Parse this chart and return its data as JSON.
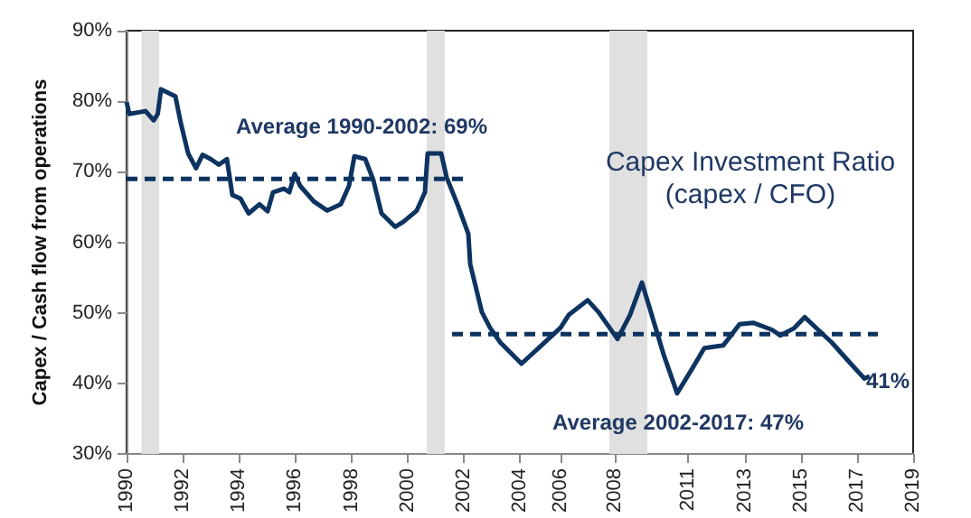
{
  "chart_data": {
    "type": "line",
    "title": "Capex Investment Ratio\n(capex / CFO)",
    "ylabel": "Capex / Cash flow from operations",
    "xlim": [
      1990,
      2019
    ],
    "xticks": [
      {
        "value": 1990,
        "label": "1990"
      },
      {
        "value": 1992.07,
        "label": "1992"
      },
      {
        "value": 1994.14,
        "label": "1994"
      },
      {
        "value": 1996.21,
        "label": "1996"
      },
      {
        "value": 1998.29,
        "label": "1998"
      },
      {
        "value": 2000.36,
        "label": "2000"
      },
      {
        "value": 2002.43,
        "label": "2002"
      },
      {
        "value": 2004.5,
        "label": "2004"
      },
      {
        "value": 2006,
        "label": "2006"
      },
      {
        "value": 2008,
        "label": "2008"
      },
      {
        "value": 2010.71,
        "label": "2011"
      },
      {
        "value": 2012.79,
        "label": "2013"
      },
      {
        "value": 2014.86,
        "label": "2015"
      },
      {
        "value": 2016.93,
        "label": "2017"
      },
      {
        "value": 2019,
        "label": "2019"
      }
    ],
    "ylim": [
      30,
      90
    ],
    "yticks": [
      {
        "value": 30,
        "label": "30%"
      },
      {
        "value": 40,
        "label": "40%"
      },
      {
        "value": 50,
        "label": "50%"
      },
      {
        "value": 60,
        "label": "60%"
      },
      {
        "value": 70,
        "label": "70%"
      },
      {
        "value": 80,
        "label": "80%"
      },
      {
        "value": 90,
        "label": "90%"
      }
    ],
    "grid": false,
    "marker": "none",
    "series": [
      {
        "color": "#0d3360",
        "line_style": "solid",
        "x": [
          1990.0,
          1990.1,
          1990.7,
          1991.0,
          1991.15,
          1991.27,
          1991.8,
          1992.0,
          1992.27,
          1992.56,
          1992.8,
          1993.1,
          1993.4,
          1993.7,
          1993.9,
          1994.2,
          1994.5,
          1994.9,
          1995.2,
          1995.4,
          1995.8,
          1996.0,
          1996.2,
          1996.4,
          1996.9,
          1997.4,
          1997.9,
          1998.2,
          1998.4,
          1998.8,
          1999.1,
          1999.4,
          1999.9,
          2000.2,
          2000.7,
          2001.0,
          2001.1,
          2001.6,
          2001.8,
          2002.2,
          2002.6,
          2002.67,
          2003.1,
          2003.4,
          2003.78,
          2004.56,
          2005.3,
          2006.0,
          2006.3,
          2007.0,
          2007.4,
          2008.1,
          2008.56,
          2009.0,
          2009.3,
          2009.8,
          2010.3,
          2010.9,
          2011.3,
          2012.0,
          2012.6,
          2013.1,
          2013.8,
          2014.1,
          2014.6,
          2015.0,
          2015.5,
          2016.0,
          2016.7,
          2017.2,
          2017.4
        ],
        "values": [
          79.9,
          78.2,
          78.6,
          77.3,
          78.2,
          81.7,
          80.7,
          76.9,
          72.6,
          70.5,
          72.4,
          71.8,
          71.0,
          71.8,
          66.7,
          66.2,
          64.1,
          65.4,
          64.4,
          67.1,
          67.6,
          67.1,
          69.7,
          68.0,
          65.8,
          64.5,
          65.4,
          68.0,
          72.2,
          71.8,
          68.8,
          64.1,
          62.2,
          62.9,
          64.5,
          67.1,
          72.6,
          72.6,
          69.2,
          65.4,
          61.2,
          56.9,
          50.1,
          47.9,
          45.8,
          42.8,
          45.4,
          47.9,
          49.7,
          51.8,
          50.1,
          46.3,
          49.7,
          54.3,
          50.5,
          44.1,
          38.6,
          42.4,
          45.0,
          45.4,
          48.4,
          48.6,
          47.6,
          46.8,
          47.8,
          49.4,
          47.6,
          45.8,
          42.8,
          40.7,
          41
        ]
      },
      {
        "color": "#0d3360",
        "line_style": "dashed",
        "x": [
          1990,
          2002.5
        ],
        "values": [
          69,
          69
        ]
      },
      {
        "color": "#0d3360",
        "line_style": "dashed",
        "x": [
          2002,
          2017.7
        ],
        "values": [
          47,
          47
        ]
      }
    ],
    "bands": [
      {
        "axis": "x",
        "from": 1990.55,
        "to": 1991.2,
        "color": "#e0e0e0"
      },
      {
        "axis": "x",
        "from": 2001.07,
        "to": 2001.73,
        "color": "#e0e0e0"
      },
      {
        "axis": "x",
        "from": 2007.8,
        "to": 2009.2,
        "color": "#e0e0e0"
      }
    ],
    "annotations": [
      "Average 1990-2002: 69%",
      "Average 2002-2017: 47%",
      "41%"
    ]
  }
}
